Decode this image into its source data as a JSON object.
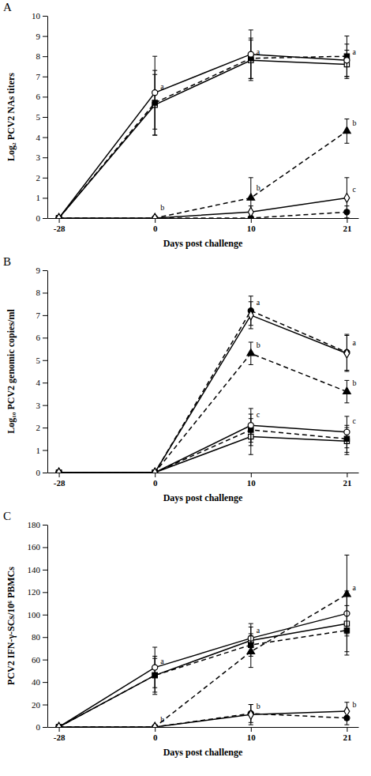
{
  "chart_data": [
    {
      "type": "line",
      "title": "A",
      "x_label": "Days post challenge",
      "y_label": "Log₂ PCV2 NAs titers",
      "categories": [
        "-28",
        "0",
        "10",
        "21"
      ],
      "ylim": [
        0,
        10
      ],
      "yticks": [
        0,
        1,
        2,
        3,
        4,
        5,
        6,
        7,
        8,
        9,
        10
      ],
      "series": [
        {
          "color": "#000000",
          "marker": "square-open",
          "line_style": "solid",
          "values": [
            0,
            5.6,
            7.8,
            7.6
          ],
          "errors": [
            0,
            1.5,
            1.0,
            0.7
          ]
        },
        {
          "color": "#000000",
          "marker": "square",
          "line_style": "dashed",
          "values": [
            0,
            5.7,
            7.9,
            8.0
          ],
          "errors": [
            0,
            1.6,
            1.0,
            1.0
          ]
        },
        {
          "color": "#000000",
          "marker": "circle-open",
          "line_style": "solid",
          "values": [
            0,
            6.2,
            8.1,
            7.8
          ],
          "errors": [
            0,
            1.8,
            1.2,
            0.8
          ]
        },
        {
          "color": "#000000",
          "marker": "circle",
          "line_style": "dashed",
          "values": [
            0,
            0,
            0,
            0.3
          ],
          "errors": [
            0,
            0,
            0,
            0.3
          ]
        },
        {
          "color": "#000000",
          "marker": "triangle",
          "line_style": "dashed",
          "values": [
            0,
            0,
            1.0,
            4.3
          ],
          "errors": [
            0,
            0,
            1.0,
            0.6
          ]
        },
        {
          "color": "#000000",
          "marker": "diamond-open",
          "line_style": "solid",
          "values": [
            0,
            0,
            0.3,
            1.0
          ],
          "errors": [
            0,
            0,
            0.3,
            1.0
          ]
        }
      ],
      "annotations": [
        {
          "x": "0",
          "y": 6.3,
          "text": "a"
        },
        {
          "x": "10",
          "y": 8.0,
          "text": "a"
        },
        {
          "x": "21",
          "y": 8.0,
          "text": "a"
        },
        {
          "x": "0",
          "y": 0.3,
          "text": "b"
        },
        {
          "x": "10",
          "y": 1.3,
          "text": "b"
        },
        {
          "x": "21",
          "y": 4.5,
          "text": "b"
        },
        {
          "x": "21",
          "y": 1.2,
          "text": "c"
        }
      ]
    },
    {
      "type": "line",
      "title": "B",
      "x_label": "Days post challenge",
      "y_label": "Log₁₀ PCV2 genomic copies/ml",
      "categories": [
        "-28",
        "0",
        "10",
        "21"
      ],
      "ylim": [
        0,
        9
      ],
      "yticks": [
        0,
        1,
        2,
        3,
        4,
        5,
        6,
        7,
        8,
        9
      ],
      "series": [
        {
          "color": "#000000",
          "marker": "square-open",
          "line_style": "solid",
          "values": [
            0,
            0,
            1.6,
            1.4
          ],
          "errors": [
            0,
            0,
            0.8,
            0.6
          ]
        },
        {
          "color": "#000000",
          "marker": "square",
          "line_style": "dashed",
          "values": [
            0,
            0,
            1.9,
            1.5
          ],
          "errors": [
            0,
            0,
            0.7,
            0.6
          ]
        },
        {
          "color": "#000000",
          "marker": "circle-open",
          "line_style": "solid",
          "values": [
            0,
            0,
            2.1,
            1.8
          ],
          "errors": [
            0,
            0,
            0.75,
            0.7
          ]
        },
        {
          "color": "#000000",
          "marker": "circle",
          "line_style": "dashed",
          "values": [
            0,
            0,
            7.2,
            5.35
          ],
          "errors": [
            0,
            0,
            0.65,
            0.8
          ]
        },
        {
          "color": "#000000",
          "marker": "triangle",
          "line_style": "dashed",
          "values": [
            0,
            0,
            5.3,
            3.6
          ],
          "errors": [
            0,
            0,
            0.5,
            0.5
          ]
        },
        {
          "color": "#000000",
          "marker": "diamond-open",
          "line_style": "solid",
          "values": [
            0,
            0,
            7.0,
            5.3
          ],
          "errors": [
            0,
            0,
            0.6,
            0.8
          ]
        }
      ],
      "annotations": [
        {
          "x": "10",
          "y": 7.4,
          "text": "a"
        },
        {
          "x": "21",
          "y": 5.6,
          "text": "a"
        },
        {
          "x": "10",
          "y": 5.5,
          "text": "b"
        },
        {
          "x": "21",
          "y": 3.8,
          "text": "b"
        },
        {
          "x": "10",
          "y": 2.4,
          "text": "c"
        },
        {
          "x": "21",
          "y": 2.1,
          "text": "c"
        }
      ]
    },
    {
      "type": "line",
      "title": "C",
      "x_label": "Days post challenge",
      "y_label": "PCV2 IFN-γ-SCs/10⁶ PBMCs",
      "categories": [
        "-28",
        "0",
        "10",
        "21"
      ],
      "ylim": [
        0,
        180
      ],
      "yticks": [
        0,
        20,
        40,
        60,
        80,
        100,
        120,
        140,
        160,
        180
      ],
      "series": [
        {
          "color": "#000000",
          "marker": "square-open",
          "line_style": "solid",
          "values": [
            0,
            46,
            77,
            92
          ],
          "errors": [
            0,
            15,
            12,
            25
          ]
        },
        {
          "color": "#000000",
          "marker": "square",
          "line_style": "dashed",
          "values": [
            0,
            46,
            73,
            86
          ],
          "errors": [
            0,
            17,
            10,
            22
          ]
        },
        {
          "color": "#000000",
          "marker": "circle-open",
          "line_style": "solid",
          "values": [
            0,
            53,
            79,
            101
          ],
          "errors": [
            0,
            18,
            13,
            20
          ]
        },
        {
          "color": "#000000",
          "marker": "circle",
          "line_style": "dashed",
          "values": [
            0,
            0,
            12,
            8
          ],
          "errors": [
            0,
            0,
            8,
            6
          ]
        },
        {
          "color": "#000000",
          "marker": "triangle",
          "line_style": "dashed",
          "values": [
            0,
            0,
            67,
            118
          ],
          "errors": [
            0,
            0,
            14,
            35
          ]
        },
        {
          "color": "#000000",
          "marker": "diamond-open",
          "line_style": "solid",
          "values": [
            0,
            0,
            11,
            14
          ],
          "errors": [
            0,
            0,
            9,
            8
          ]
        }
      ],
      "annotations": [
        {
          "x": "0",
          "y": 55,
          "text": "a"
        },
        {
          "x": "10",
          "y": 82,
          "text": "a"
        },
        {
          "x": "21",
          "y": 120,
          "text": "a"
        },
        {
          "x": "0",
          "y": 3,
          "text": "b"
        },
        {
          "x": "10",
          "y": 15,
          "text": "b"
        },
        {
          "x": "21",
          "y": 16,
          "text": "b"
        }
      ]
    }
  ]
}
